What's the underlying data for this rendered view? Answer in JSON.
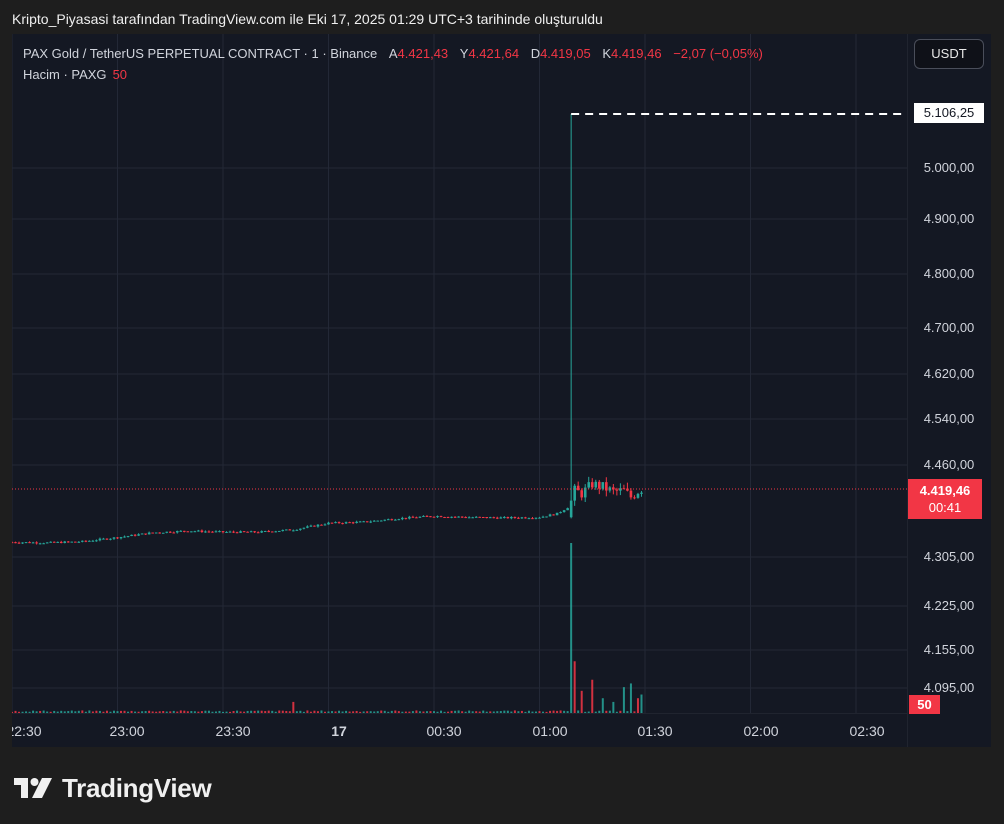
{
  "caption": "Kripto_Piyasasi tarafından TradingView.com ile Eki 17, 2025 01:29 UTC+3 tarihinde oluşturuldu",
  "legend": {
    "title": "PAX Gold / TetherUS PERPETUAL CONTRACT · 1 · Binance",
    "open_label": "A",
    "open": "4.421,43",
    "high_label": "Y",
    "high": "4.421,64",
    "low_label": "D",
    "low": "4.419,05",
    "close_label": "K",
    "close": "4.419,46",
    "change": "−2,07 (−0,05%)",
    "volume_label": "Hacim · PAXG",
    "volume_value": "50"
  },
  "currency": "USDT",
  "price_axis": {
    "ticks": [
      "5.000,00",
      "4.900,00",
      "4.800,00",
      "4.700,00",
      "4.620,00",
      "4.540,00",
      "4.460,00",
      "4.305,00",
      "4.225,00",
      "4.155,00",
      "4.095,00"
    ],
    "max_label": "5.106,25",
    "last_price": "4.419,46",
    "countdown": "00:41",
    "volume_label": "50"
  },
  "time_axis": {
    "ticks": [
      {
        "label": "22:30",
        "bold": false
      },
      {
        "label": "23:00",
        "bold": false
      },
      {
        "label": "23:30",
        "bold": false
      },
      {
        "label": "17",
        "bold": true
      },
      {
        "label": "00:30",
        "bold": false
      },
      {
        "label": "01:00",
        "bold": false
      },
      {
        "label": "01:30",
        "bold": false
      },
      {
        "label": "02:00",
        "bold": false
      },
      {
        "label": "02:30",
        "bold": false
      }
    ]
  },
  "brand": "TradingView",
  "colors": {
    "up": "#26a69a",
    "down": "#f23645",
    "background": "#141823",
    "grid": "#232836"
  },
  "chart_data": {
    "type": "candlestick",
    "timeframe": "1m",
    "last_price": 4419.46,
    "max_high": 5106.25,
    "price_axis_ticks": [
      5000,
      4900,
      4800,
      4700,
      4620,
      4540,
      4460,
      4305,
      4225,
      4155,
      4095
    ],
    "series": [
      {
        "name": "price_path",
        "x": [
          "22:30",
          "22:40",
          "22:50",
          "23:00",
          "23:10",
          "23:20",
          "23:30",
          "23:40",
          "23:50",
          "00:00",
          "00:10",
          "00:20",
          "00:30",
          "00:40",
          "00:50",
          "01:00",
          "01:05",
          "01:09",
          "01:10",
          "01:12",
          "01:15",
          "01:18",
          "01:21",
          "01:24",
          "01:26",
          "01:28",
          "01:29"
        ],
        "values": [
          4330,
          4329,
          4331,
          4338,
          4346,
          4349,
          4347,
          4347,
          4351,
          4362,
          4364,
          4370,
          4374,
          4372,
          4371,
          4372,
          4378,
          4392,
          4417,
          4412,
          4428,
          4423,
          4415,
          4417,
          4406,
          4416,
          4419.46
        ]
      },
      {
        "name": "Hacim",
        "x": [
          "22:30",
          "23:00",
          "23:30",
          "23:50",
          "00:30",
          "01:00",
          "01:09",
          "01:10",
          "01:12",
          "01:15",
          "01:18",
          "01:21",
          "01:24",
          "01:26",
          "01:28",
          "01:29"
        ],
        "values": [
          3,
          5,
          3,
          30,
          5,
          5,
          460,
          140,
          60,
          90,
          40,
          30,
          70,
          80,
          40,
          50
        ]
      }
    ],
    "xlabel": "",
    "ylabel": ""
  }
}
